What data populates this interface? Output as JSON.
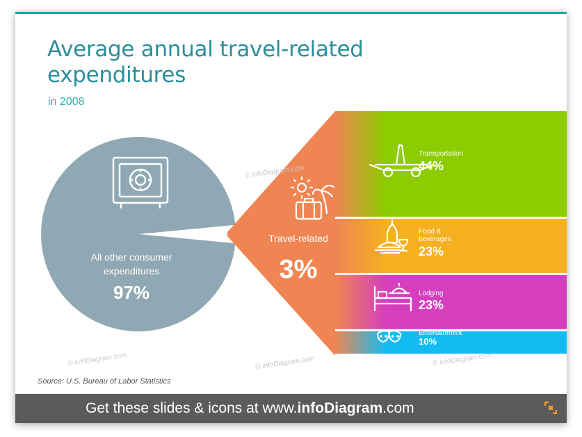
{
  "title": "Average annual travel-related expenditures",
  "subtitle": "in 2008",
  "source": "Source: U.S. Bureau of Labor Statistics",
  "watermark": "© infoDiagram.com",
  "footer": {
    "prefix": "Get these slides & icons at www.",
    "brand": "infoDiagram",
    "suffix": ".com"
  },
  "colors": {
    "accent_title": "#2c8e9c",
    "pie": "#8fa8b3",
    "travel": "#ef8552",
    "transportation": "#8ccc00",
    "food": "#f5b020",
    "lodging": "#d53fbe",
    "entertainment": "#12bcf2",
    "footer": "#5b5b5b"
  },
  "chart_data": [
    {
      "type": "pie",
      "title": "",
      "slices": [
        {
          "label": "All other consumer expenditures",
          "value": 97,
          "display": "97%",
          "icon": "safe-icon"
        },
        {
          "label": "Travel-related",
          "value": 3,
          "display": "3%",
          "icon": "travel-icon"
        }
      ]
    },
    {
      "type": "bar",
      "title": "Travel-related",
      "orientation": "stacked-horizontal-bands",
      "categories": [
        "Transportation",
        "Food & beverages",
        "Lodging",
        "Entertainment"
      ],
      "values": [
        44,
        23,
        23,
        10
      ],
      "display": [
        "44%",
        "23%",
        "23%",
        "10%"
      ],
      "icons": [
        "airplane-icon",
        "food-beverages-icon",
        "lodging-icon",
        "theater-masks-icon"
      ]
    }
  ]
}
